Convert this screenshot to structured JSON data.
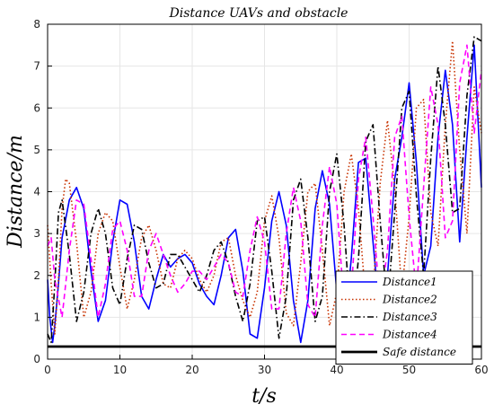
{
  "chart_data": {
    "type": "line",
    "title": "Distance   UAVs   and   obstacle",
    "xlabel": "t/s",
    "ylabel": "Distance/m",
    "xlim": [
      0,
      60
    ],
    "ylim": [
      0,
      8
    ],
    "xticks": [
      0,
      10,
      20,
      30,
      40,
      50,
      60
    ],
    "yticks": [
      0,
      1,
      2,
      3,
      4,
      5,
      6,
      7,
      8
    ],
    "grid": true,
    "legend_position": "bottom-right",
    "series": [
      {
        "name": "Distance1",
        "color": "#0000ff",
        "style": "solid",
        "x": [
          0,
          0.3,
          0.7,
          1,
          1.5,
          2,
          3,
          4,
          5,
          6,
          7,
          8,
          9,
          10,
          11,
          12,
          13,
          14,
          15,
          16,
          17,
          18,
          19,
          20,
          21,
          22,
          23,
          24,
          25,
          26,
          27,
          28,
          29,
          30,
          31,
          32,
          33,
          34,
          35,
          36,
          37,
          38,
          39,
          40,
          41,
          42,
          43,
          44,
          45,
          46,
          47,
          48,
          49,
          50,
          51,
          52,
          53,
          54,
          55,
          56,
          57,
          58,
          59,
          60
        ],
        "y": [
          1.9,
          1.0,
          0.4,
          0.8,
          1.8,
          2.9,
          3.8,
          4.1,
          3.6,
          2.1,
          0.9,
          1.4,
          2.8,
          3.8,
          3.7,
          2.8,
          1.5,
          1.2,
          1.9,
          2.5,
          2.2,
          2.4,
          2.5,
          2.3,
          1.8,
          1.5,
          1.3,
          2.0,
          2.9,
          3.1,
          2.1,
          0.6,
          0.5,
          1.7,
          3.3,
          4.0,
          3.2,
          1.4,
          0.4,
          1.4,
          3.6,
          4.5,
          3.7,
          1.6,
          0.6,
          2.4,
          4.7,
          4.8,
          2.8,
          0.9,
          2.0,
          4.3,
          5.3,
          6.6,
          4.7,
          2.0,
          2.7,
          5.3,
          6.9,
          5.6,
          2.8,
          5.3,
          7.5,
          4.1
        ]
      },
      {
        "name": "Distance2",
        "color": "#c83200",
        "style": "dotted",
        "x": [
          0,
          0.5,
          1,
          1.5,
          2,
          2.5,
          3,
          4,
          5,
          6,
          7,
          8,
          9,
          10,
          11,
          12,
          13,
          14,
          15,
          16,
          17,
          18,
          19,
          20,
          21,
          22,
          23,
          24,
          25,
          26,
          27,
          28,
          29,
          30,
          31,
          32,
          33,
          34,
          35,
          36,
          37,
          38,
          39,
          40,
          41,
          42,
          43,
          44,
          45,
          46,
          47,
          48,
          49,
          50,
          51,
          52,
          53,
          54,
          55,
          56,
          57,
          58,
          59,
          60
        ],
        "y": [
          3.2,
          1.8,
          0.6,
          1.9,
          3.6,
          4.3,
          4.2,
          2.8,
          1.0,
          1.6,
          3.0,
          3.5,
          3.3,
          2.2,
          1.2,
          1.9,
          2.9,
          3.2,
          2.6,
          1.8,
          1.7,
          2.4,
          2.6,
          2.4,
          1.9,
          1.6,
          2.0,
          2.8,
          2.9,
          2.0,
          1.4,
          1.0,
          1.6,
          3.3,
          3.9,
          2.9,
          1.1,
          0.8,
          2.3,
          4.0,
          4.2,
          2.6,
          0.8,
          1.6,
          4.0,
          4.9,
          3.6,
          1.4,
          1.6,
          4.2,
          5.7,
          4.1,
          1.6,
          3.4,
          6.0,
          6.2,
          3.5,
          2.7,
          5.6,
          7.6,
          5.0,
          3.0,
          6.5,
          5.4
        ]
      },
      {
        "name": "Distance3",
        "color": "#000000",
        "style": "dashdot",
        "x": [
          0,
          0.5,
          1,
          1.5,
          2,
          3,
          4,
          5,
          6,
          7,
          8,
          9,
          10,
          11,
          12,
          13,
          14,
          15,
          16,
          17,
          18,
          19,
          20,
          21,
          22,
          23,
          24,
          25,
          26,
          27,
          28,
          29,
          30,
          31,
          32,
          33,
          34,
          35,
          36,
          37,
          38,
          39,
          40,
          41,
          42,
          43,
          44,
          45,
          46,
          47,
          48,
          49,
          50,
          51,
          52,
          53,
          54,
          55,
          56,
          57,
          58,
          59,
          60
        ],
        "y": [
          0.6,
          0.4,
          1.8,
          3.5,
          3.8,
          2.5,
          0.9,
          1.6,
          3.0,
          3.6,
          3.0,
          1.7,
          1.3,
          2.4,
          3.2,
          3.1,
          2.3,
          1.7,
          1.8,
          2.5,
          2.5,
          2.2,
          1.9,
          1.6,
          2.0,
          2.6,
          2.8,
          2.3,
          1.5,
          0.9,
          1.8,
          3.3,
          3.4,
          2.1,
          0.5,
          1.5,
          3.8,
          4.3,
          2.9,
          0.9,
          1.5,
          4.0,
          4.9,
          3.2,
          0.7,
          2.4,
          5.2,
          5.6,
          3.3,
          1.2,
          3.5,
          6.0,
          6.4,
          3.9,
          2.0,
          4.8,
          7.0,
          5.6,
          3.5,
          3.6,
          6.3,
          7.7,
          7.6
        ]
      },
      {
        "name": "Distance4",
        "color": "#ff00ff",
        "style": "dashed",
        "x": [
          0,
          0.5,
          1,
          2,
          3,
          4,
          5,
          6,
          7,
          8,
          9,
          10,
          11,
          12,
          13,
          14,
          15,
          16,
          17,
          18,
          19,
          20,
          21,
          22,
          23,
          24,
          25,
          26,
          27,
          28,
          29,
          30,
          31,
          32,
          33,
          34,
          35,
          36,
          37,
          38,
          39,
          40,
          41,
          42,
          43,
          44,
          45,
          46,
          47,
          48,
          49,
          50,
          51,
          52,
          53,
          54,
          55,
          56,
          57,
          58,
          59,
          60
        ],
        "y": [
          2.7,
          2.9,
          1.9,
          1.0,
          2.6,
          3.8,
          3.7,
          2.4,
          1.0,
          1.8,
          3.1,
          3.3,
          2.6,
          1.5,
          1.5,
          2.6,
          3.0,
          2.5,
          2.0,
          1.6,
          1.8,
          2.1,
          2.1,
          1.9,
          2.2,
          2.5,
          2.3,
          1.6,
          1.5,
          2.6,
          3.4,
          2.8,
          1.2,
          1.2,
          3.0,
          4.1,
          3.3,
          1.3,
          1.0,
          3.2,
          4.6,
          3.7,
          1.3,
          1.6,
          4.3,
          5.3,
          3.4,
          1.3,
          2.6,
          5.3,
          5.8,
          3.4,
          1.6,
          4.1,
          6.5,
          5.6,
          2.9,
          3.3,
          6.6,
          7.5,
          5.4,
          6.9
        ]
      },
      {
        "name": "Safe   distance",
        "color": "#000000",
        "style": "solid-thick",
        "x": [
          0,
          60
        ],
        "y": [
          0.3,
          0.3
        ]
      }
    ]
  }
}
